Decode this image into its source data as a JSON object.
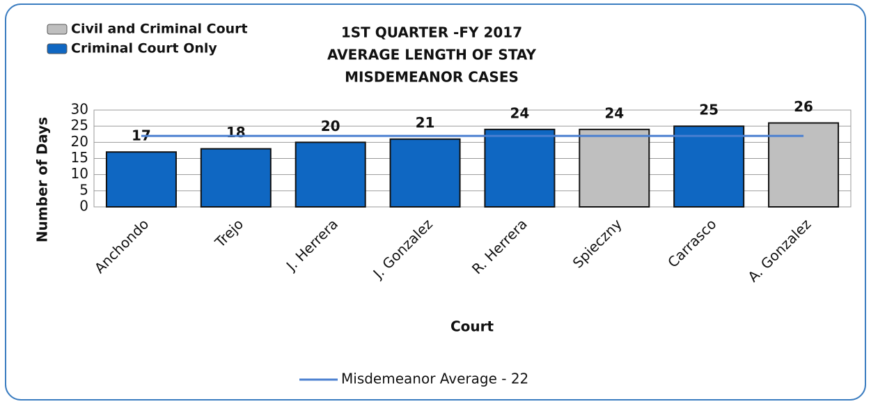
{
  "chart_data": {
    "type": "bar",
    "title": [
      "1ST QUARTER -FY 2017",
      "AVERAGE LENGTH OF STAY",
      "MISDEMEANOR CASES"
    ],
    "categories": [
      "Anchondo",
      "Trejo",
      "J. Herrera",
      "J. Gonzalez",
      "R. Herrera",
      "Spieczny",
      "Carrasco",
      "A. Gonzalez"
    ],
    "values": [
      17,
      18,
      20,
      21,
      24,
      24,
      25,
      26
    ],
    "colors": [
      "#0f67c2",
      "#0f67c2",
      "#0f67c2",
      "#0f67c2",
      "#0f67c2",
      "#bfbfbf",
      "#0f67c2",
      "#bfbfbf"
    ],
    "legend": [
      {
        "name": "Civil and Criminal Court",
        "color": "#bfbfbf"
      },
      {
        "name": "Criminal Court Only",
        "color": "#0f67c2"
      }
    ],
    "reference_line": {
      "name": "Misdemeanor Average - 22",
      "value": 22,
      "color": "#4a7fd0"
    },
    "xlabel": "Court",
    "ylabel": "Number of Days",
    "ylim": [
      0,
      30
    ],
    "yticks": [
      0,
      5,
      10,
      15,
      20,
      25,
      30
    ],
    "grid": true
  }
}
